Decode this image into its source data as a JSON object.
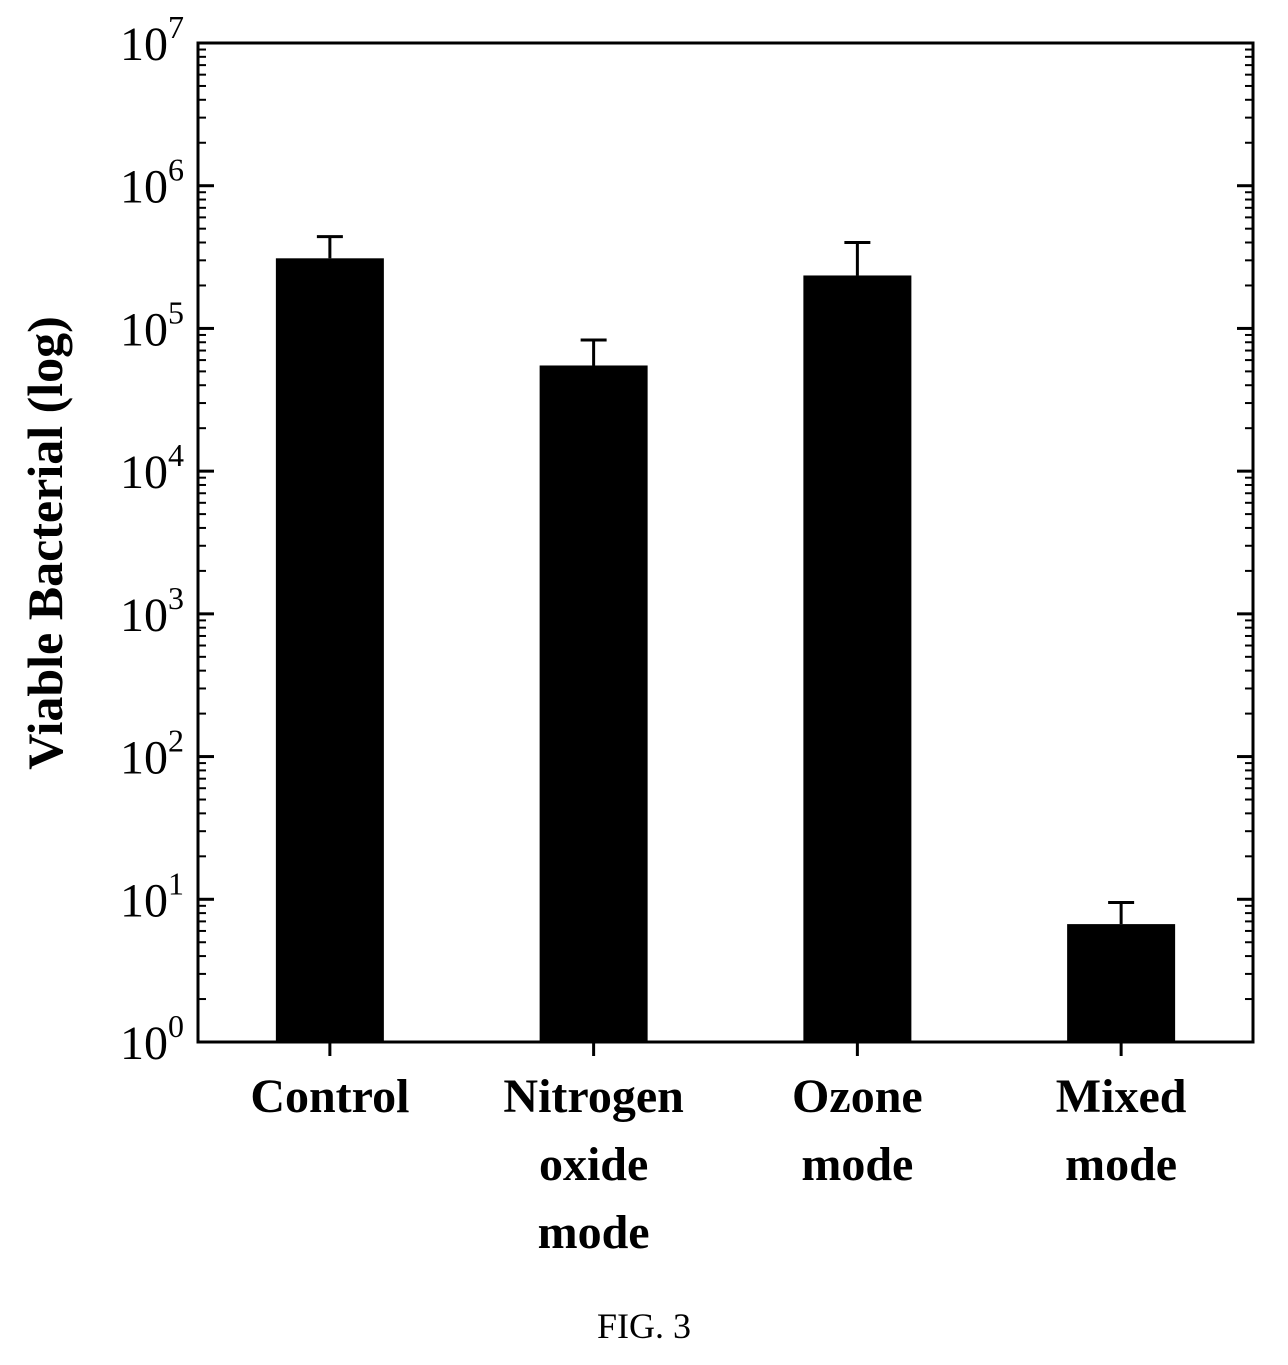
{
  "chart_data": {
    "type": "bar",
    "ylabel": "Viable Bacterial (log)",
    "yscale": "log",
    "ylim": [
      1,
      10000000
    ],
    "ytick_exponents": [
      0,
      1,
      2,
      3,
      4,
      5,
      6,
      7
    ],
    "ytick_base": "10",
    "categories": [
      [
        "Control"
      ],
      [
        "Nitrogen",
        "oxide",
        "mode"
      ],
      [
        "Ozone",
        "mode"
      ],
      [
        "Mixed",
        "mode"
      ]
    ],
    "values": [
      310000,
      55000,
      235000,
      6.7
    ],
    "error_upper": [
      440000,
      83000,
      400000,
      9.5
    ],
    "bar_color": "#000000",
    "grid": false,
    "legend": "none"
  },
  "caption": "FIG. 3"
}
